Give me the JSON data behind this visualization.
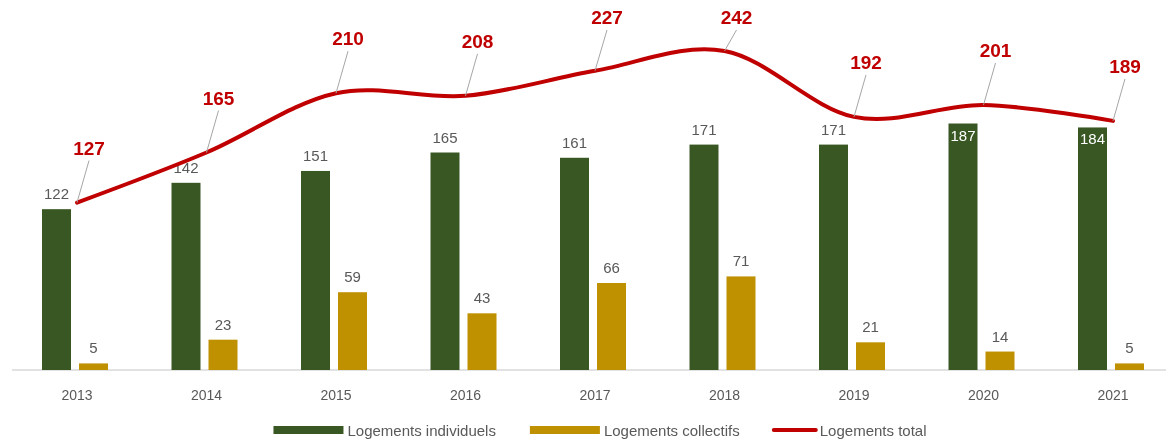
{
  "chart_data": {
    "type": "bar",
    "categories": [
      "2013",
      "2014",
      "2015",
      "2016",
      "2017",
      "2018",
      "2019",
      "2020",
      "2021"
    ],
    "series": [
      {
        "name": "Logements individuels",
        "color": "#385723",
        "values": [
          122,
          142,
          151,
          165,
          161,
          171,
          171,
          187,
          184
        ]
      },
      {
        "name": "Logements collectifs",
        "color": "#bf9000",
        "values": [
          5,
          23,
          59,
          43,
          66,
          71,
          21,
          14,
          5
        ]
      },
      {
        "name": "Logements total",
        "type": "line",
        "color": "#c00000",
        "values": [
          127,
          165,
          210,
          208,
          227,
          242,
          192,
          201,
          189
        ]
      }
    ],
    "data_labels": true,
    "legend": "bottom"
  }
}
